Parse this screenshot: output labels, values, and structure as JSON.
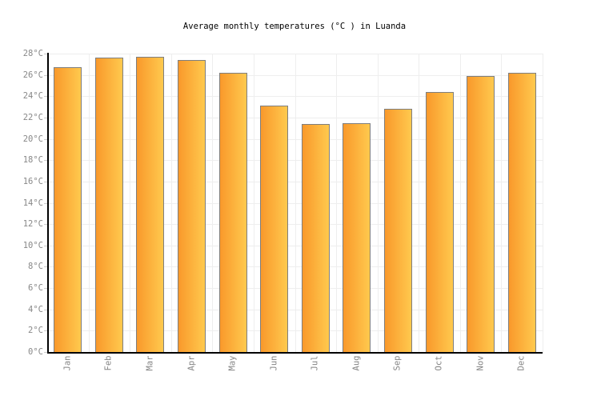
{
  "title": "Average monthly temperatures (°C ) in Luanda",
  "chart_data": {
    "type": "bar",
    "title": "Average monthly temperatures (°C ) in Luanda",
    "categories": [
      "Jan",
      "Feb",
      "Mar",
      "Apr",
      "May",
      "Jun",
      "Jul",
      "Aug",
      "Sep",
      "Oct",
      "Nov",
      "Dec"
    ],
    "values": [
      26.7,
      27.6,
      27.7,
      27.4,
      26.2,
      23.1,
      21.4,
      21.5,
      22.8,
      24.4,
      25.9,
      26.2
    ],
    "xlabel": "",
    "ylabel": "",
    "ylim": [
      0,
      28
    ],
    "ytick_step": 2,
    "yticks": [
      "0°C",
      "2°C",
      "4°C",
      "6°C",
      "8°C",
      "10°C",
      "12°C",
      "14°C",
      "16°C",
      "18°C",
      "20°C",
      "22°C",
      "24°C",
      "26°C",
      "28°C"
    ],
    "grid": true,
    "legend": "none",
    "colors": {
      "bar_gradient_left": "#f9992b",
      "bar_gradient_right": "#ffc94e",
      "bar_border": "#7e7e7e",
      "axis": "#000000",
      "gridline": "#eeeeee",
      "tick_mark": "#cccccc",
      "tick_label": "#888888",
      "title_text": "#000000",
      "background": "#ffffff"
    }
  }
}
